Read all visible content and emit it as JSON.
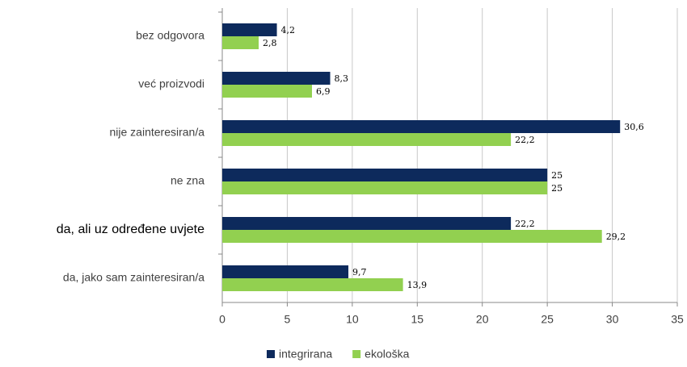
{
  "chart_data": {
    "type": "hbar",
    "categories": [
      "bez odgovora",
      "već proizvodi",
      "nije zainteresiran/a",
      "ne zna",
      "da, ali uz određene uvjete",
      "da, jako sam zainteresiran/a"
    ],
    "series": [
      {
        "name": "integrirana",
        "color": "#0d2a5c",
        "values": [
          4.2,
          8.3,
          30.6,
          25,
          22.2,
          9.7
        ],
        "value_labels": [
          "4,2",
          "8,3",
          "30,6",
          "25",
          "22,2",
          "9,7"
        ]
      },
      {
        "name": "ekološka",
        "color": "#92d050",
        "values": [
          2.8,
          6.9,
          22.2,
          25,
          29.2,
          13.9
        ],
        "value_labels": [
          "2,8",
          "6,9",
          "22,2",
          "25",
          "29,2",
          "13,9"
        ]
      }
    ],
    "xlim": [
      0,
      35
    ],
    "xticks": [
      0,
      5,
      10,
      15,
      20,
      25,
      30,
      35
    ],
    "grid": true,
    "legend": "bottom"
  }
}
